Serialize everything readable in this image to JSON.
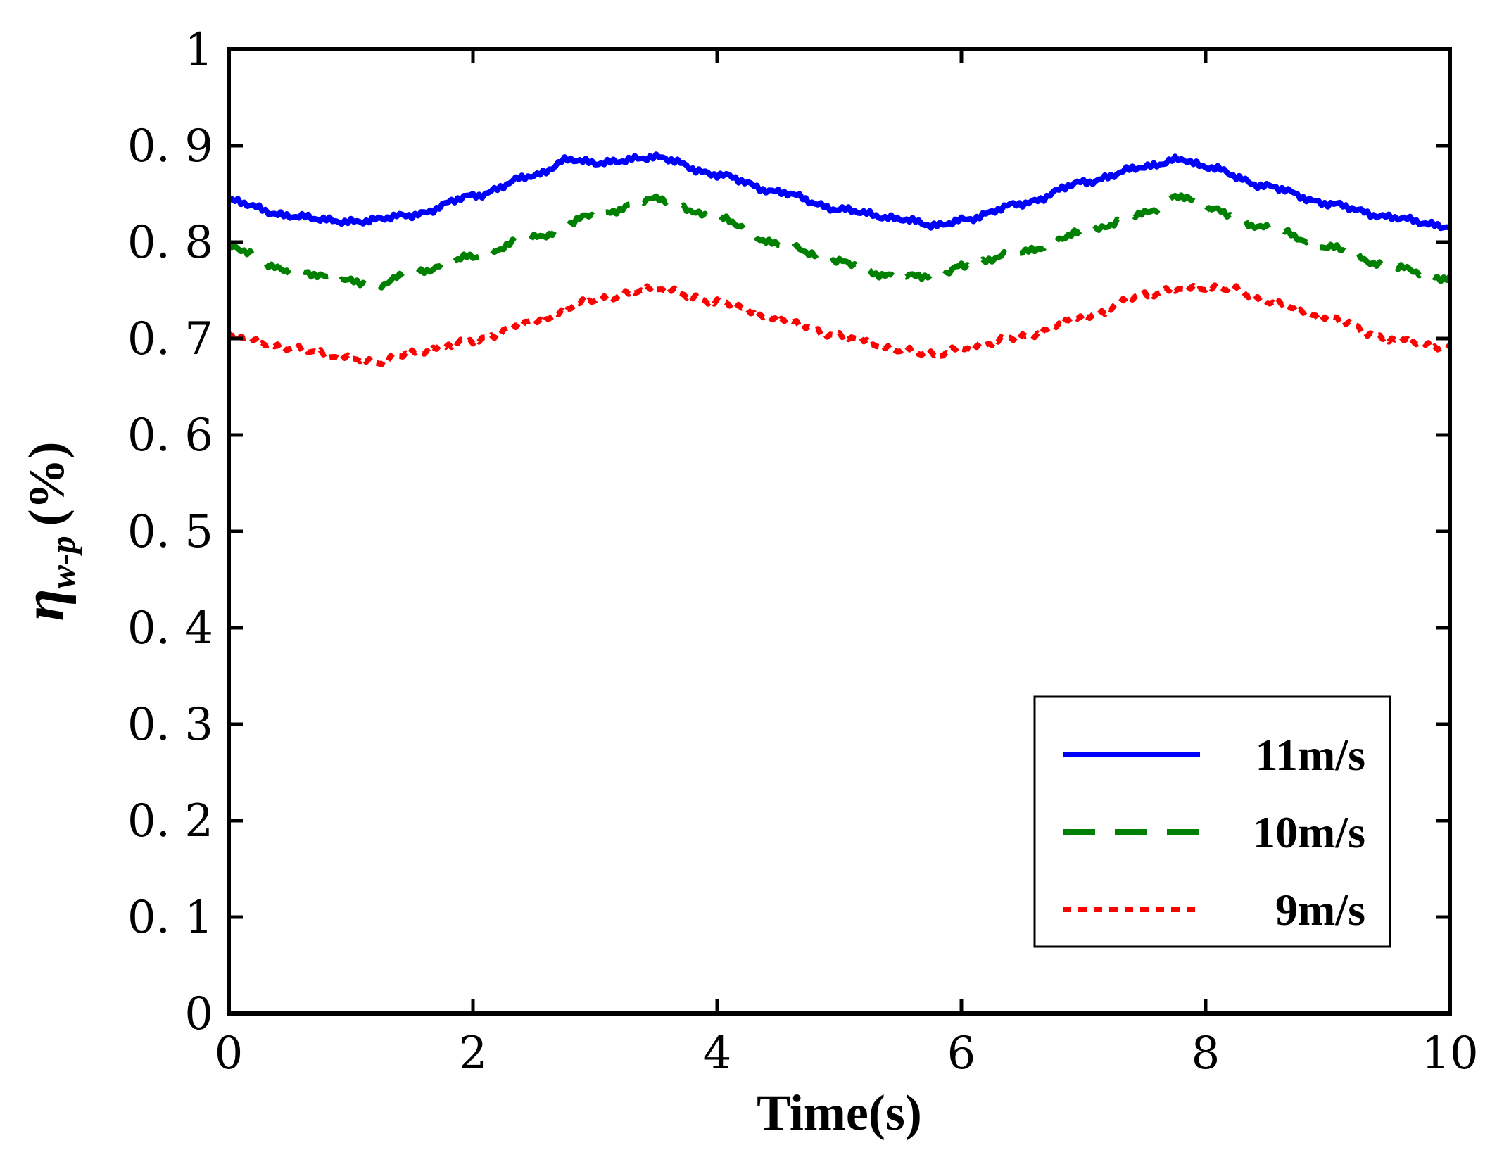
{
  "chart_data": {
    "type": "line",
    "title": "",
    "xlabel": "Time(s)",
    "ylabel": {
      "symbol": "η",
      "subscript": "w-p",
      "unit": "(%)"
    },
    "xlim": [
      0,
      10
    ],
    "ylim": [
      0,
      1
    ],
    "xticks": [
      0,
      2,
      4,
      6,
      8,
      10
    ],
    "xtick_labels": [
      "0",
      "2",
      "4",
      "6",
      "8",
      "10"
    ],
    "yticks": [
      0,
      0.1,
      0.2,
      0.3,
      0.4,
      0.5,
      0.6,
      0.7,
      0.8,
      0.9,
      1
    ],
    "ytick_labels": [
      "0",
      "0. 1",
      "0. 2",
      "0. 3",
      "0. 4",
      "0. 5",
      "0. 6",
      "0. 7",
      "0. 8",
      "0. 9",
      "1"
    ],
    "grid": false,
    "legend_position": "bottom-right",
    "series": [
      {
        "name": "11m/s",
        "color": "#0000ff",
        "style": "solid",
        "x": [
          0,
          0.5,
          1,
          1.5,
          2,
          2.5,
          2.8,
          3,
          3.5,
          4,
          4.5,
          5,
          5.5,
          5.8,
          6,
          6.5,
          7,
          7.5,
          7.8,
          8,
          8.5,
          9,
          9.5,
          10
        ],
        "y": [
          0.843,
          0.827,
          0.821,
          0.828,
          0.848,
          0.869,
          0.886,
          0.882,
          0.888,
          0.87,
          0.852,
          0.834,
          0.824,
          0.817,
          0.823,
          0.84,
          0.862,
          0.878,
          0.886,
          0.878,
          0.858,
          0.84,
          0.826,
          0.816
        ]
      },
      {
        "name": "10m/s",
        "color": "#008000",
        "style": "dashed",
        "x": [
          0,
          0.5,
          1,
          1.2,
          1.5,
          2,
          2.5,
          3,
          3.5,
          4,
          4.5,
          5,
          5.4,
          5.8,
          6,
          6.5,
          7,
          7.5,
          7.8,
          8,
          8.5,
          9,
          9.5,
          10
        ],
        "y": [
          0.795,
          0.77,
          0.76,
          0.755,
          0.768,
          0.785,
          0.805,
          0.828,
          0.845,
          0.825,
          0.798,
          0.78,
          0.765,
          0.765,
          0.775,
          0.79,
          0.81,
          0.83,
          0.848,
          0.835,
          0.815,
          0.795,
          0.775,
          0.762
        ]
      },
      {
        "name": "9m/s",
        "color": "#ff0000",
        "style": "dotted",
        "x": [
          0,
          0.5,
          1,
          1.2,
          1.5,
          2,
          2.5,
          3,
          3.5,
          4,
          4.5,
          5,
          5.5,
          5.8,
          6,
          6.5,
          7,
          7.5,
          7.8,
          8.2,
          8.5,
          9,
          9.5,
          10
        ],
        "y": [
          0.703,
          0.69,
          0.68,
          0.675,
          0.685,
          0.698,
          0.718,
          0.74,
          0.752,
          0.738,
          0.72,
          0.703,
          0.688,
          0.683,
          0.69,
          0.702,
          0.722,
          0.745,
          0.752,
          0.752,
          0.738,
          0.722,
          0.7,
          0.69
        ]
      }
    ]
  }
}
